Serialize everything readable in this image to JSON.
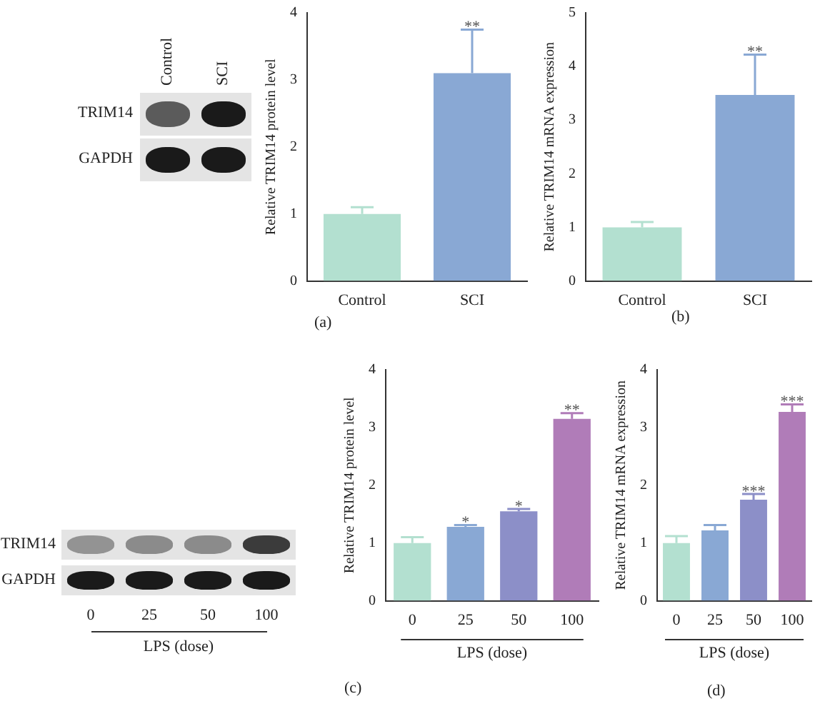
{
  "chart_data": [
    {
      "type": "other",
      "categories": [
        "Control",
        "SCI"
      ],
      "annotations": [
        "TRIM14",
        "GAPDH"
      ]
    },
    {
      "type": "bar",
      "ylabel": "Relative TRIM14 protein level",
      "categories": [
        "Control",
        "SCI"
      ],
      "values": [
        1.0,
        3.1
      ],
      "colors": [
        "#b3e0d0",
        "#89a8d4"
      ],
      "errors": [
        [
          1.0,
          1.1
        ],
        [
          3.1,
          3.75
        ]
      ],
      "ylim": [
        0,
        4
      ],
      "yticks": [
        0,
        1,
        2,
        3,
        4
      ],
      "grid": false,
      "legend": false,
      "annotations": [
        {
          "text": "**",
          "x": "SCI",
          "y": 3.75
        },
        "(a)"
      ]
    },
    {
      "type": "bar",
      "ylabel": "Relative TRIM14 mRNA expression",
      "categories": [
        "Control",
        "SCI"
      ],
      "values": [
        1.0,
        3.47
      ],
      "colors": [
        "#b3e0d0",
        "#89a8d4"
      ],
      "errors": [
        [
          1.0,
          1.1
        ],
        [
          3.47,
          4.22
        ]
      ],
      "ylim": [
        0,
        5
      ],
      "yticks": [
        0,
        1,
        2,
        3,
        4,
        5
      ],
      "grid": false,
      "legend": false,
      "annotations": [
        {
          "text": "**",
          "x": "SCI",
          "y": 4.22
        },
        "(b)"
      ]
    },
    {
      "type": "other",
      "categories": [
        "0",
        "25",
        "50",
        "100"
      ],
      "xlabel": "LPS (dose)",
      "annotations": [
        "TRIM14",
        "GAPDH"
      ]
    },
    {
      "type": "bar",
      "ylabel": "Relative TRIM14 protein level",
      "xlabel": "LPS (dose)",
      "categories": [
        "0",
        "25",
        "50",
        "100"
      ],
      "values": [
        1.0,
        1.28,
        1.55,
        3.15
      ],
      "colors": [
        "#b3e0d0",
        "#89a8d4",
        "#8c8fc8",
        "#b07cb8"
      ],
      "errors": [
        [
          1.0,
          1.1
        ],
        [
          1.28,
          1.31
        ],
        [
          1.55,
          1.59
        ],
        [
          3.15,
          3.25
        ]
      ],
      "ylim": [
        0,
        4
      ],
      "yticks": [
        0,
        1,
        2,
        3,
        4
      ],
      "grid": false,
      "legend": false,
      "annotations": [
        {
          "text": "*",
          "x": "25",
          "y": 1.31
        },
        {
          "text": "*",
          "x": "50",
          "y": 1.59
        },
        {
          "text": "**",
          "x": "100",
          "y": 3.25
        },
        "(c)"
      ]
    },
    {
      "type": "bar",
      "ylabel": "Relative TRIM14 mRNA expression",
      "xlabel": "LPS (dose)",
      "categories": [
        "0",
        "25",
        "50",
        "100"
      ],
      "values": [
        1.0,
        1.22,
        1.75,
        3.27
      ],
      "colors": [
        "#b3e0d0",
        "#89a8d4",
        "#8c8fc8",
        "#b07cb8"
      ],
      "errors": [
        [
          1.0,
          1.12
        ],
        [
          1.22,
          1.31
        ],
        [
          1.75,
          1.85
        ],
        [
          3.27,
          3.4
        ]
      ],
      "ylim": [
        0,
        4
      ],
      "yticks": [
        0,
        1,
        2,
        3,
        4
      ],
      "grid": false,
      "legend": false,
      "annotations": [
        {
          "text": "***",
          "x": "50",
          "y": 1.85
        },
        {
          "text": "***",
          "x": "100",
          "y": 3.4
        },
        "(d)"
      ]
    }
  ]
}
